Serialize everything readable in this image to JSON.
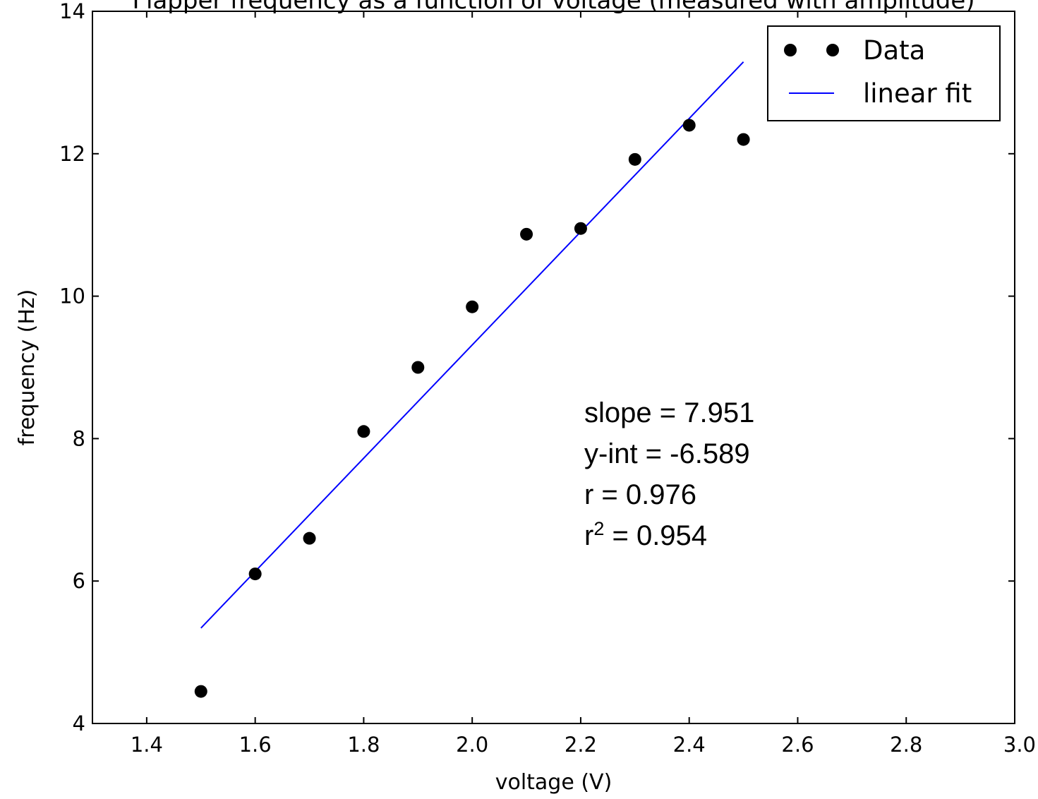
{
  "chart_data": {
    "type": "scatter",
    "title": "Flapper frequency as a function of voltage (measured with amplitude)",
    "xlabel": "voltage (V)",
    "ylabel": "frequency (Hz)",
    "xlim": [
      1.3,
      3.0
    ],
    "ylim": [
      4,
      14
    ],
    "x_ticks": [
      1.4,
      1.6,
      1.8,
      2.0,
      2.2,
      2.4,
      2.6,
      2.8,
      3.0
    ],
    "x_tick_labels": [
      "1.4",
      "1.6",
      "1.8",
      "2.0",
      "2.2",
      "2.4",
      "2.6",
      "2.8",
      "3.0"
    ],
    "y_ticks": [
      4,
      6,
      8,
      10,
      12,
      14
    ],
    "y_tick_labels": [
      "4",
      "6",
      "8",
      "10",
      "12",
      "14"
    ],
    "grid": false,
    "legend_position": "top-right",
    "series": [
      {
        "name": "Data",
        "kind": "scatter",
        "color": "#000000",
        "x": [
          1.5,
          1.6,
          1.7,
          1.8,
          1.9,
          2.0,
          2.1,
          2.2,
          2.3,
          2.4,
          2.5
        ],
        "y": [
          4.45,
          6.1,
          6.6,
          8.1,
          9.0,
          9.85,
          10.87,
          10.95,
          11.92,
          12.4,
          12.2
        ]
      },
      {
        "name": "linear fit",
        "kind": "line",
        "color": "#0000ff",
        "x": [
          1.5,
          2.5
        ],
        "y": [
          5.34,
          13.29
        ]
      }
    ],
    "annotations": [
      {
        "key": "slope",
        "text": "slope = 7.951"
      },
      {
        "key": "yint",
        "text": "y-int = -6.589"
      },
      {
        "key": "r",
        "text": "r = 0.976"
      },
      {
        "key": "r2_base",
        "text": "r",
        "superscript": "2",
        "rest": " = 0.954"
      }
    ]
  }
}
